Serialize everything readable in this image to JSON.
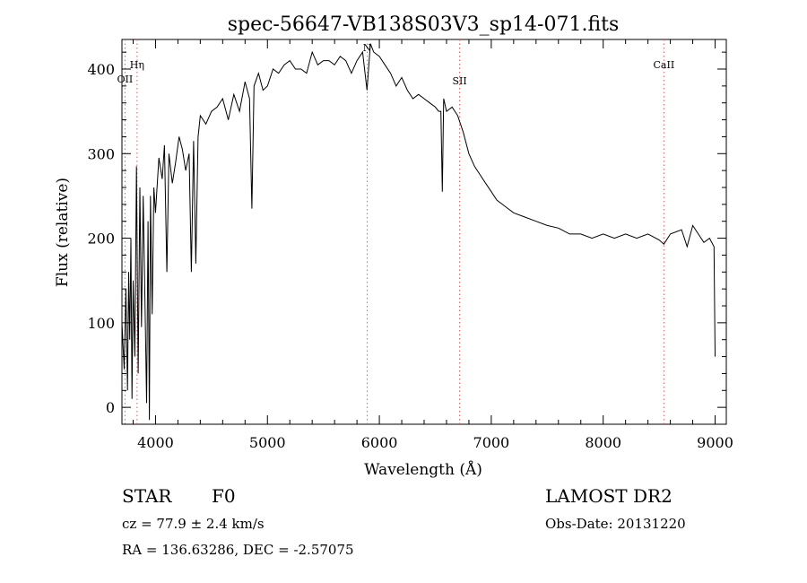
{
  "chart_data": {
    "type": "line",
    "title": "spec-56647-VB138S03V3_sp14-071.fits",
    "xlabel": "Wavelength (Å)",
    "ylabel": "Flux (relative)",
    "xlim": [
      3700,
      9100
    ],
    "ylim": [
      -20,
      435
    ],
    "xticks": [
      "4000",
      "5000",
      "6000",
      "7000",
      "8000",
      "9000"
    ],
    "yticks": [
      "0",
      "100",
      "200",
      "300",
      "400"
    ],
    "xtick_values": [
      4000,
      5000,
      6000,
      7000,
      8000,
      9000
    ],
    "ytick_values": [
      0,
      100,
      200,
      300,
      400
    ],
    "grid": false,
    "line_color": "#000000",
    "marker_color": "#e06060",
    "line_markers": [
      {
        "label": "OII",
        "x": 3727
      },
      {
        "label": "Hη",
        "x": 3835
      },
      {
        "label": "N",
        "x": 5892
      },
      {
        "label": "SII",
        "x": 6717
      },
      {
        "label": "CaII",
        "x": 8542
      }
    ],
    "series": [
      {
        "x": [
          3700,
          3720,
          3735,
          3750,
          3760,
          3770,
          3780,
          3790,
          3800,
          3815,
          3830,
          3845,
          3860,
          3875,
          3890,
          3905,
          3920,
          3933,
          3945,
          3955,
          3970,
          3985,
          4000,
          4030,
          4060,
          4080,
          4101,
          4120,
          4150,
          4180,
          4210,
          4240,
          4270,
          4300,
          4320,
          4340,
          4360,
          4380,
          4400,
          4450,
          4500,
          4550,
          4600,
          4650,
          4700,
          4750,
          4800,
          4840,
          4861,
          4880,
          4920,
          4960,
          5000,
          5050,
          5100,
          5150,
          5200,
          5250,
          5300,
          5350,
          5400,
          5450,
          5500,
          5550,
          5600,
          5650,
          5700,
          5750,
          5800,
          5850,
          5890,
          5920,
          5950,
          6000,
          6050,
          6100,
          6150,
          6200,
          6250,
          6300,
          6350,
          6400,
          6450,
          6500,
          6530,
          6550,
          6563,
          6575,
          6600,
          6650,
          6700,
          6750,
          6800,
          6850,
          6900,
          6950,
          7000,
          7050,
          7100,
          7150,
          7200,
          7300,
          7400,
          7500,
          7600,
          7700,
          7800,
          7900,
          8000,
          8100,
          8200,
          8300,
          8400,
          8500,
          8542,
          8600,
          8700,
          8750,
          8800,
          8850,
          8900,
          8950,
          8990,
          9000
        ],
        "y": [
          100,
          45,
          140,
          20,
          160,
          80,
          200,
          10,
          150,
          60,
          285,
          40,
          260,
          95,
          250,
          130,
          5,
          220,
          -15,
          250,
          110,
          260,
          230,
          295,
          270,
          310,
          160,
          300,
          265,
          290,
          320,
          305,
          280,
          300,
          160,
          315,
          170,
          320,
          345,
          335,
          350,
          355,
          365,
          340,
          370,
          350,
          385,
          365,
          235,
          380,
          395,
          375,
          380,
          400,
          395,
          405,
          410,
          400,
          400,
          395,
          420,
          405,
          410,
          410,
          405,
          415,
          410,
          395,
          410,
          420,
          375,
          430,
          420,
          415,
          405,
          395,
          380,
          390,
          375,
          365,
          370,
          365,
          360,
          355,
          350,
          350,
          255,
          365,
          350,
          355,
          345,
          325,
          300,
          285,
          275,
          265,
          255,
          245,
          240,
          235,
          230,
          225,
          220,
          215,
          212,
          205,
          205,
          200,
          205,
          200,
          205,
          200,
          205,
          198,
          193,
          205,
          210,
          190,
          215,
          205,
          195,
          200,
          190,
          60
        ]
      }
    ]
  },
  "footer": {
    "object_class": "STAR",
    "subclass": "F0",
    "survey": "LAMOST DR2",
    "cz": "cz = 77.9 ± 2.4 km/s",
    "obs_date": "Obs-Date: 20131220",
    "coords": "RA = 136.63286, DEC =  -2.57075"
  }
}
